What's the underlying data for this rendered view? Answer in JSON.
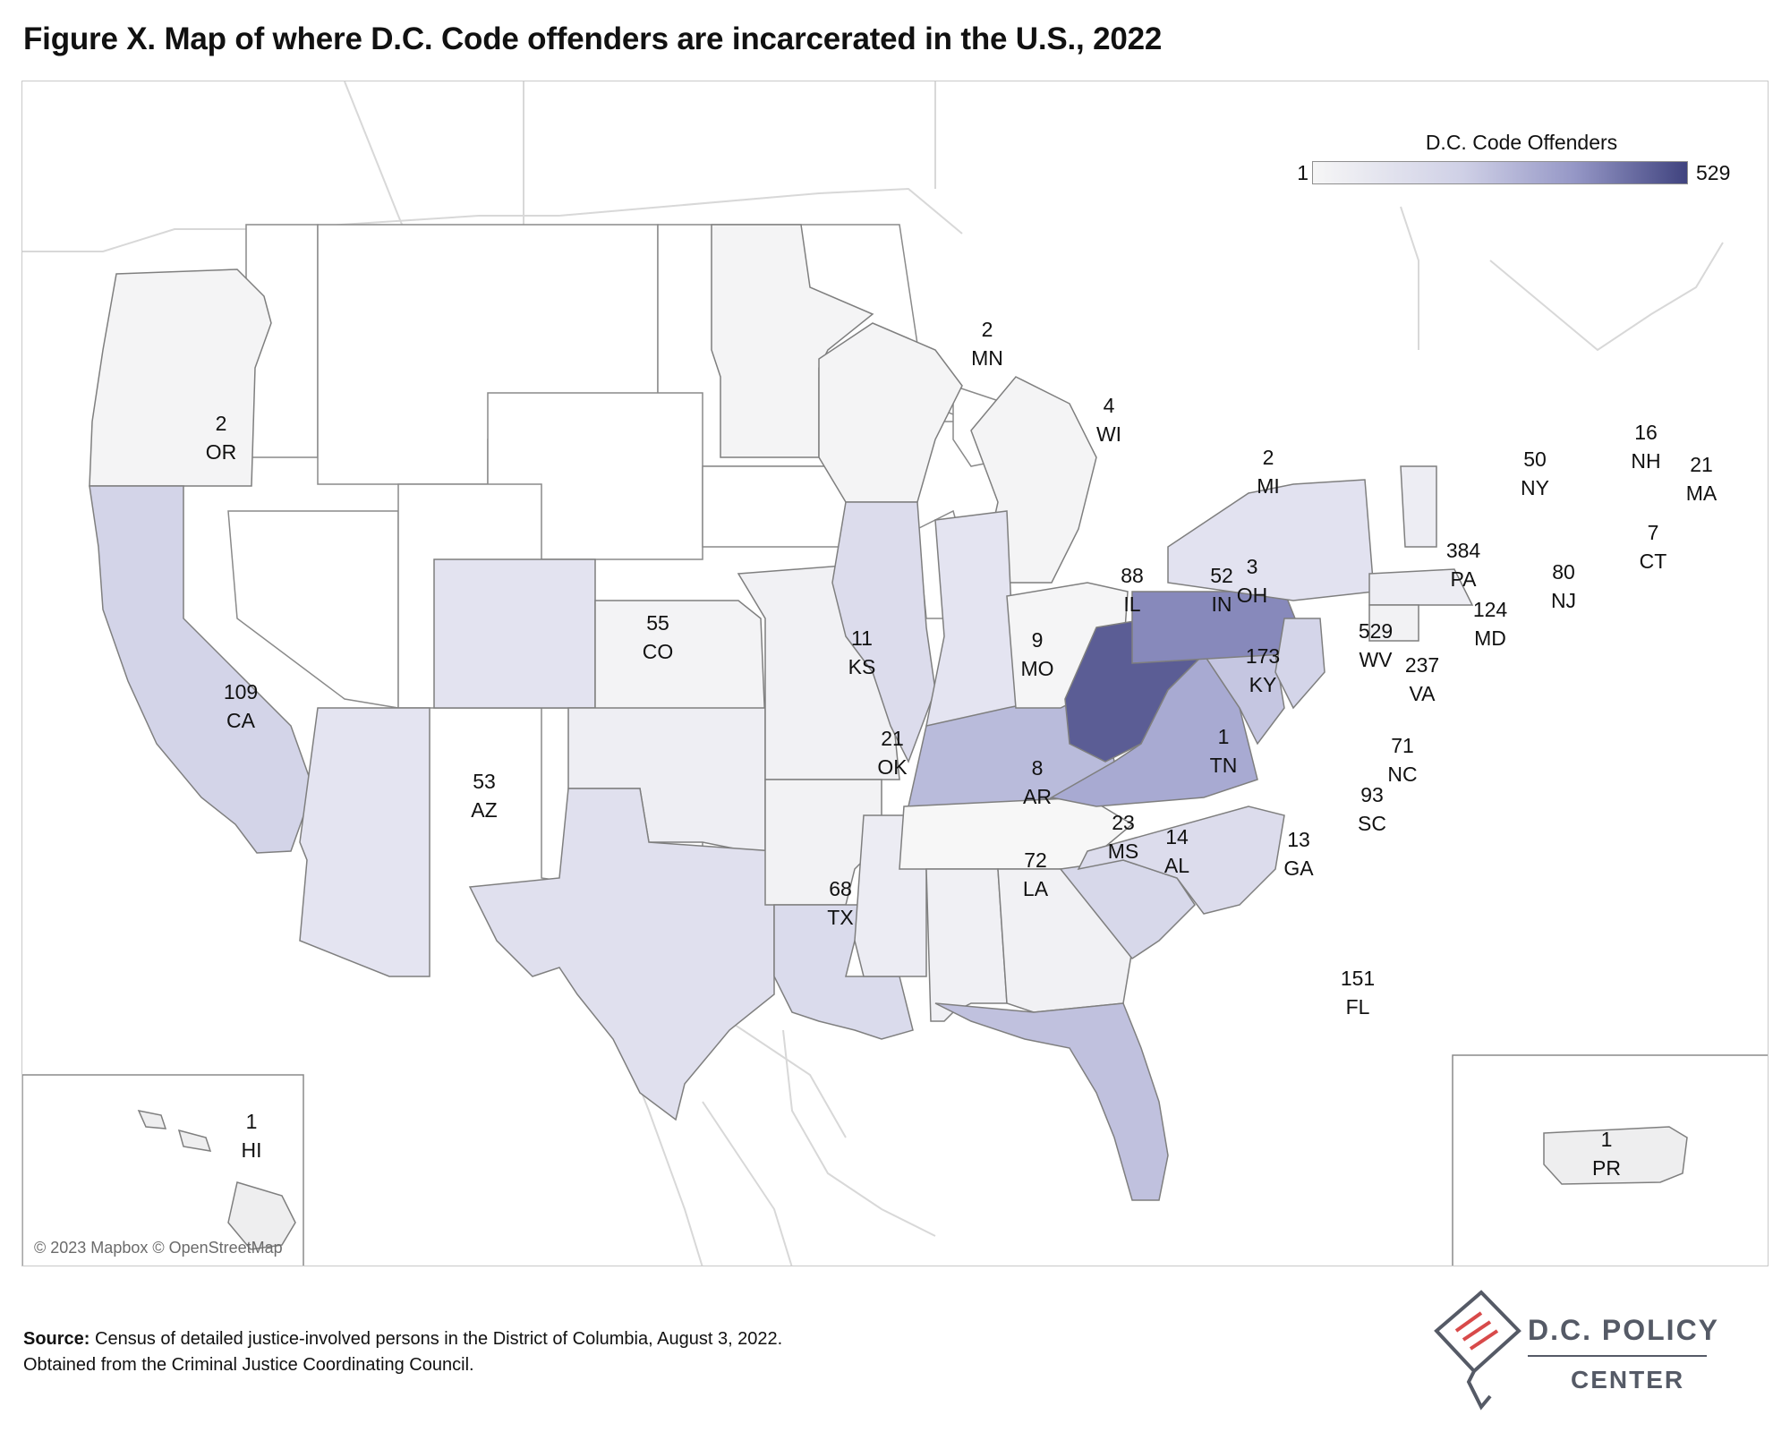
{
  "title": "Figure X. Map of where D.C. Code offenders are incarcerated in the U.S., 2022",
  "legend": {
    "title": "D.C. Code Offenders",
    "min": "1",
    "max": "529"
  },
  "colors": {
    "low": "#f6f6f6",
    "mid": "#cfd0e6",
    "high": "#9597c6",
    "max": "#40437f",
    "border": "#8a8a8a",
    "no_data": "#ffffff"
  },
  "states": [
    {
      "abbr": "OR",
      "value": "2"
    },
    {
      "abbr": "CA",
      "value": "109"
    },
    {
      "abbr": "AZ",
      "value": "53"
    },
    {
      "abbr": "CO",
      "value": "55"
    },
    {
      "abbr": "KS",
      "value": "11"
    },
    {
      "abbr": "OK",
      "value": "21"
    },
    {
      "abbr": "TX",
      "value": "68"
    },
    {
      "abbr": "MN",
      "value": "2"
    },
    {
      "abbr": "MO",
      "value": "9"
    },
    {
      "abbr": "AR",
      "value": "8"
    },
    {
      "abbr": "LA",
      "value": "72"
    },
    {
      "abbr": "WI",
      "value": "4"
    },
    {
      "abbr": "IL",
      "value": "88"
    },
    {
      "abbr": "MS",
      "value": "23"
    },
    {
      "abbr": "MI",
      "value": "2"
    },
    {
      "abbr": "IN",
      "value": "52"
    },
    {
      "abbr": "KY",
      "value": "173"
    },
    {
      "abbr": "TN",
      "value": "1"
    },
    {
      "abbr": "AL",
      "value": "14"
    },
    {
      "abbr": "OH",
      "value": "3"
    },
    {
      "abbr": "GA",
      "value": "13"
    },
    {
      "abbr": "FL",
      "value": "151"
    },
    {
      "abbr": "SC",
      "value": "93"
    },
    {
      "abbr": "NC",
      "value": "71"
    },
    {
      "abbr": "WV",
      "value": "529"
    },
    {
      "abbr": "VA",
      "value": "237"
    },
    {
      "abbr": "MD",
      "value": "124"
    },
    {
      "abbr": "PA",
      "value": "384"
    },
    {
      "abbr": "NJ",
      "value": "80"
    },
    {
      "abbr": "NY",
      "value": "50"
    },
    {
      "abbr": "NH",
      "value": "16"
    },
    {
      "abbr": "MA",
      "value": "21"
    },
    {
      "abbr": "CT",
      "value": "7"
    },
    {
      "abbr": "HI",
      "value": "1"
    },
    {
      "abbr": "PR",
      "value": "1"
    }
  ],
  "map_credit": "© 2023 Mapbox © OpenStreetMap",
  "source": {
    "label": "Source:",
    "line1": "Census of detailed justice-involved persons in the District of Columbia, August 3, 2022.",
    "line2": "Obtained from the Criminal Justice Coordinating Council."
  },
  "logo": {
    "line1": "D.C. POLICY",
    "line2": "CENTER"
  }
}
